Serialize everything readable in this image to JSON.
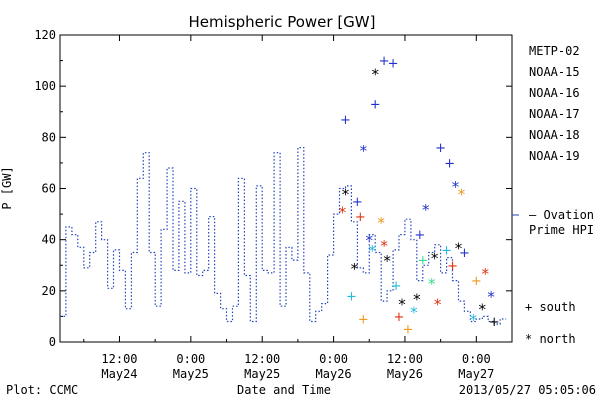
{
  "chart_data": {
    "type": "scatter",
    "title": "Hemispheric Power [GW]",
    "ylabel": "P [GW]",
    "xlabel": "Date and Time",
    "ylim": [
      0,
      120
    ],
    "yticks": [
      0,
      20,
      40,
      60,
      80,
      100,
      120
    ],
    "xlim_hours": [
      -22,
      54
    ],
    "xticks": [
      {
        "h": -12,
        "time": "12:00",
        "date": "May24"
      },
      {
        "h": 0,
        "time": "0:00",
        "date": "May25"
      },
      {
        "h": 12,
        "time": "12:00",
        "date": "May25"
      },
      {
        "h": 24,
        "time": "0:00",
        "date": "May26"
      },
      {
        "h": 36,
        "time": "12:00",
        "date": "May26"
      },
      {
        "h": 48,
        "time": "0:00",
        "date": "May27"
      }
    ],
    "footer_left": "Plot: CCMC",
    "footer_right": "2013/05/27 05:05:06",
    "legend": {
      "satellites": [
        {
          "name": "METP-02",
          "color": "#000000"
        },
        {
          "name": "NOAA-15",
          "color": "#2233cc"
        },
        {
          "name": "NOAA-16",
          "color": "#22bbdd"
        },
        {
          "name": "NOAA-17",
          "color": "#33dd88"
        },
        {
          "name": "NOAA-18",
          "color": "#ee9922"
        },
        {
          "name": "NOAA-19",
          "color": "#dd3311"
        }
      ],
      "ovation_line1": "– Ovation",
      "ovation_line2": "Prime HPI",
      "ovation_color": "#2244bb",
      "south_label": "+ south",
      "north_label": "* north"
    },
    "ovation_series": {
      "name": "Ovation Prime HPI",
      "x": [
        -21.5,
        -20.5,
        -19.5,
        -18.5,
        -17.5,
        -16.5,
        -15.5,
        -14.5,
        -13.5,
        -12.5,
        -11.5,
        -10.5,
        -9.5,
        -8.5,
        -7.5,
        -6.5,
        -5.5,
        -4.5,
        -3.5,
        -2.5,
        -1.5,
        -0.5,
        0.5,
        1.5,
        2.5,
        3.5,
        4.5,
        5.5,
        6.5,
        7.5,
        8.5,
        9.5,
        10.5,
        11.5,
        12.5,
        13.5,
        14.5,
        15.5,
        16.5,
        17.5,
        18.5,
        19.5,
        20.5,
        21.5,
        22.5,
        23.5,
        24.5,
        25.5,
        26.5,
        27.5,
        28.5,
        29.5,
        30.5,
        31.5,
        32.5,
        33.5,
        34.5,
        35.5,
        36.5,
        37.5,
        38.5,
        39.5,
        40.5,
        41.5,
        42.5,
        43.5,
        44.5,
        45.5,
        46.5,
        47.5,
        48.5,
        49.5,
        50.5,
        51.5,
        52.5
      ],
      "y": [
        10,
        45,
        42,
        37,
        29,
        35,
        47,
        40,
        21,
        36,
        28,
        13,
        35,
        64,
        74,
        35,
        14,
        44,
        68,
        28,
        55,
        27,
        60,
        26,
        28,
        49,
        19,
        13,
        8,
        14,
        64,
        26,
        8,
        61,
        28,
        27,
        74,
        14,
        37,
        32,
        76,
        27,
        8,
        12,
        15,
        34,
        50,
        60,
        61,
        47,
        29,
        27,
        42,
        35,
        16,
        20,
        36,
        42,
        48,
        40,
        24,
        30,
        35,
        38,
        27,
        33,
        24,
        16,
        12,
        8,
        9,
        10,
        8,
        7,
        9
      ]
    },
    "satellite_points": [
      {
        "sat": "NOAA-15",
        "hemi": "south",
        "x": 26.0,
        "y": 87
      },
      {
        "sat": "NOAA-15",
        "hemi": "south",
        "x": 31.0,
        "y": 93
      },
      {
        "sat": "NOAA-15",
        "hemi": "south",
        "x": 32.5,
        "y": 110
      },
      {
        "sat": "NOAA-15",
        "hemi": "south",
        "x": 34.0,
        "y": 109
      },
      {
        "sat": "NOAA-15",
        "hemi": "south",
        "x": 28.0,
        "y": 55
      },
      {
        "sat": "NOAA-15",
        "hemi": "north",
        "x": 29.0,
        "y": 75
      },
      {
        "sat": "NOAA-15",
        "hemi": "north",
        "x": 30.0,
        "y": 40
      },
      {
        "sat": "NOAA-15",
        "hemi": "south",
        "x": 38.5,
        "y": 42
      },
      {
        "sat": "NOAA-15",
        "hemi": "north",
        "x": 39.5,
        "y": 52
      },
      {
        "sat": "NOAA-15",
        "hemi": "south",
        "x": 42.0,
        "y": 76
      },
      {
        "sat": "NOAA-15",
        "hemi": "south",
        "x": 43.5,
        "y": 70
      },
      {
        "sat": "NOAA-15",
        "hemi": "north",
        "x": 44.5,
        "y": 61
      },
      {
        "sat": "NOAA-15",
        "hemi": "south",
        "x": 46.0,
        "y": 35
      },
      {
        "sat": "NOAA-15",
        "hemi": "north",
        "x": 50.5,
        "y": 18
      },
      {
        "sat": "METP-02",
        "hemi": "north",
        "x": 26.0,
        "y": 58
      },
      {
        "sat": "METP-02",
        "hemi": "north",
        "x": 31.0,
        "y": 105
      },
      {
        "sat": "METP-02",
        "hemi": "north",
        "x": 27.5,
        "y": 29
      },
      {
        "sat": "METP-02",
        "hemi": "north",
        "x": 33.0,
        "y": 32
      },
      {
        "sat": "METP-02",
        "hemi": "north",
        "x": 35.5,
        "y": 15
      },
      {
        "sat": "METP-02",
        "hemi": "north",
        "x": 38.0,
        "y": 17
      },
      {
        "sat": "METP-02",
        "hemi": "north",
        "x": 41.0,
        "y": 33
      },
      {
        "sat": "METP-02",
        "hemi": "north",
        "x": 45.0,
        "y": 37
      },
      {
        "sat": "METP-02",
        "hemi": "north",
        "x": 49.0,
        "y": 13
      },
      {
        "sat": "METP-02",
        "hemi": "south",
        "x": 51.0,
        "y": 8
      },
      {
        "sat": "NOAA-16",
        "hemi": "south",
        "x": 27.0,
        "y": 18
      },
      {
        "sat": "NOAA-16",
        "hemi": "north",
        "x": 30.5,
        "y": 36
      },
      {
        "sat": "NOAA-16",
        "hemi": "south",
        "x": 34.5,
        "y": 22
      },
      {
        "sat": "NOAA-16",
        "hemi": "north",
        "x": 37.5,
        "y": 12
      },
      {
        "sat": "NOAA-16",
        "hemi": "south",
        "x": 43.0,
        "y": 36
      },
      {
        "sat": "NOAA-16",
        "hemi": "north",
        "x": 47.5,
        "y": 9
      },
      {
        "sat": "NOAA-17",
        "hemi": "south",
        "x": 39.0,
        "y": 32
      },
      {
        "sat": "NOAA-17",
        "hemi": "north",
        "x": 40.5,
        "y": 23
      },
      {
        "sat": "NOAA-18",
        "hemi": "south",
        "x": 29.0,
        "y": 9
      },
      {
        "sat": "NOAA-18",
        "hemi": "north",
        "x": 32.0,
        "y": 47
      },
      {
        "sat": "NOAA-18",
        "hemi": "south",
        "x": 36.5,
        "y": 5
      },
      {
        "sat": "NOAA-18",
        "hemi": "north",
        "x": 45.5,
        "y": 58
      },
      {
        "sat": "NOAA-18",
        "hemi": "south",
        "x": 48.0,
        "y": 24
      },
      {
        "sat": "NOAA-19",
        "hemi": "north",
        "x": 25.5,
        "y": 51
      },
      {
        "sat": "NOAA-19",
        "hemi": "south",
        "x": 28.5,
        "y": 49
      },
      {
        "sat": "NOAA-19",
        "hemi": "north",
        "x": 32.5,
        "y": 38
      },
      {
        "sat": "NOAA-19",
        "hemi": "south",
        "x": 35.0,
        "y": 10
      },
      {
        "sat": "NOAA-19",
        "hemi": "north",
        "x": 41.5,
        "y": 15
      },
      {
        "sat": "NOAA-19",
        "hemi": "south",
        "x": 44.0,
        "y": 30
      },
      {
        "sat": "NOAA-19",
        "hemi": "north",
        "x": 49.5,
        "y": 27
      }
    ]
  }
}
